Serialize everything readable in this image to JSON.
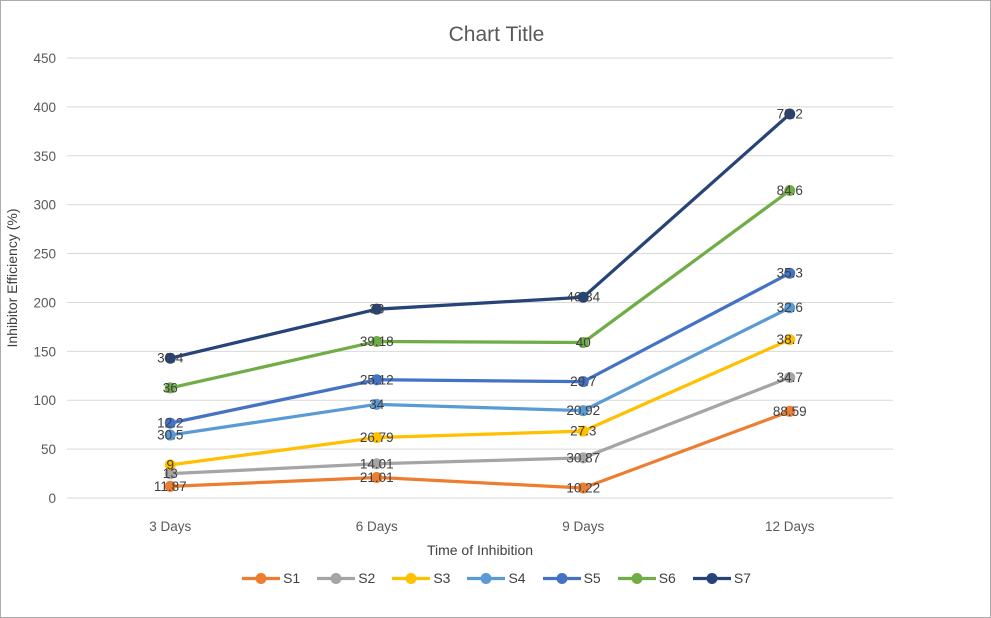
{
  "window": {
    "background": "#ffffff",
    "border_color": "#ababab"
  },
  "chart_data": {
    "type": "line",
    "stacked": true,
    "title": "Chart Title",
    "xlabel": "Time of Inhibition",
    "ylabel": "Inhibitor Efficiency (%)",
    "categories": [
      "3 Days",
      "6 Days",
      "9 Days",
      "12 Days"
    ],
    "series": [
      {
        "name": "S1",
        "color": "#ED7D31",
        "values": [
          11.87,
          21.01,
          10.22,
          88.59
        ],
        "labels": [
          "11.87",
          "21.01",
          "10.22",
          "88.59"
        ]
      },
      {
        "name": "S2",
        "color": "#A5A5A5",
        "values": [
          13,
          14.01,
          30.87,
          34.7
        ],
        "labels": [
          "13",
          "14.01",
          "30.87",
          "34.7"
        ]
      },
      {
        "name": "S3",
        "color": "#FFC000",
        "values": [
          9,
          26.79,
          27.3,
          38.7
        ],
        "labels": [
          "9",
          "26.79",
          "27.3",
          "38.7"
        ]
      },
      {
        "name": "S4",
        "color": "#5B9BD5",
        "values": [
          30.5,
          34,
          20.92,
          32.6
        ],
        "labels": [
          "30.5",
          "34",
          "20.92",
          "32.6"
        ]
      },
      {
        "name": "S5",
        "color": "#4472C4",
        "values": [
          12.2,
          25.12,
          29.7,
          35.3
        ],
        "labels": [
          "12.2",
          "25.12",
          "29.7",
          "35.3"
        ]
      },
      {
        "name": "S6",
        "color": "#70AD47",
        "values": [
          36,
          39.18,
          40,
          84.6
        ],
        "labels": [
          "36",
          "39.18",
          "40",
          "84.6"
        ]
      },
      {
        "name": "S7",
        "color": "#264478",
        "values": [
          30.4,
          33,
          46.34,
          78.2
        ],
        "labels": [
          "30.4",
          "33",
          "46.34",
          "78.2"
        ]
      }
    ],
    "ylim": [
      0,
      450
    ],
    "ytick_step": 50,
    "yticks": [
      0,
      50,
      100,
      150,
      200,
      250,
      300,
      350,
      400,
      450
    ],
    "grid": true,
    "data_labels": true,
    "legend_position": "bottom",
    "styles": {
      "grid_color": "#D9D9D9",
      "title_color": "#595959",
      "axis_text_color": "#595959",
      "data_label_color": "#404040"
    }
  }
}
